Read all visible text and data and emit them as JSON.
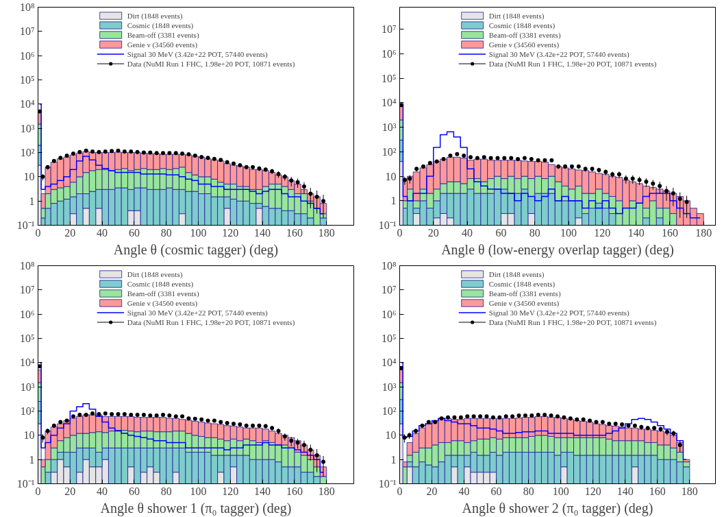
{
  "chart_data": [
    {
      "type": "bar",
      "stacked": true,
      "log": "y",
      "grid": false,
      "legend": "top",
      "xlabel": "Angle θ (cosmic tagger) (deg)",
      "x": [
        1,
        3,
        6,
        10,
        14,
        18,
        22,
        26,
        30,
        34,
        38,
        42,
        46,
        50,
        54,
        58,
        62,
        66,
        70,
        74,
        78,
        82,
        86,
        90,
        94,
        98,
        102,
        106,
        110,
        114,
        118,
        122,
        126,
        130,
        134,
        138,
        142,
        146,
        150,
        154,
        158,
        162,
        166,
        170,
        174,
        178
      ],
      "xlim": [
        0,
        197
      ],
      "xticks": [
        0,
        20,
        40,
        60,
        80,
        100,
        120,
        140,
        160,
        180
      ],
      "ylim": [
        0.1,
        100000000
      ],
      "yticks": [
        {
          "value": 0.1,
          "label": "10⁻¹"
        },
        1,
        10,
        {
          "value": 100,
          "label": "10²"
        },
        {
          "value": 1000,
          "label": "10³"
        },
        {
          "value": 10000,
          "label": "10⁴"
        },
        {
          "value": 100000,
          "label": "10⁵"
        },
        {
          "value": 1000000,
          "label": "10⁶"
        },
        {
          "value": 10000000,
          "label": "10⁷"
        },
        {
          "value": 100000000,
          "label": "10⁸"
        }
      ],
      "series": [
        {
          "name": "Dirt (1848 events)",
          "color": "#e5e5e5",
          "values": [
            30,
            null,
            null,
            null,
            null,
            null,
            0.3,
            null,
            0.5,
            null,
            0.5,
            null,
            null,
            null,
            null,
            0.4,
            0.4,
            null,
            null,
            null,
            null,
            null,
            null,
            0.3,
            null,
            null,
            null,
            null,
            null,
            null,
            0.5,
            null,
            null,
            null,
            null,
            0.5,
            null,
            null,
            null,
            null,
            null,
            null,
            null,
            null,
            null,
            null
          ]
        },
        {
          "name": "Cosmic (1848 events)",
          "color": "#7fcccc",
          "values": [
            170,
            0.2,
            0.5,
            0.8,
            1,
            1.2,
            1.2,
            2,
            1.5,
            2.5,
            2.5,
            3,
            3,
            3.5,
            3.5,
            2.6,
            3.1,
            3.5,
            3,
            3,
            3,
            3.5,
            3,
            2.7,
            2.5,
            2.5,
            2,
            2,
            1.5,
            1.5,
            1,
            1.2,
            1,
            1,
            0.8,
            0.3,
            0.6,
            0.5,
            0.5,
            0.4,
            0.4,
            0.3,
            0.3,
            0.2,
            null,
            0.2
          ]
        },
        {
          "name": "Beam-off (3381 events)",
          "color": "#99e599",
          "values": [
            1300,
            0.3,
            1.5,
            2.2,
            2.5,
            2.8,
            4.5,
            8,
            13,
            15.5,
            17,
            17,
            15,
            16.5,
            18.5,
            15,
            16.5,
            18.5,
            17,
            17,
            19,
            16.5,
            19,
            22,
            12.5,
            9.5,
            8,
            8,
            6.5,
            4.5,
            3.5,
            3.8,
            3,
            3,
            2.2,
            2.2,
            3.4,
            4.5,
            4.5,
            3.6,
            2.6,
            1.7,
            1.7,
            0.8,
            0.5,
            0.1
          ]
        },
        {
          "name": "Genie ν (34560 events)",
          "color": "#ff9999",
          "values": [
            3500,
            1.5,
            23,
            37,
            52,
            61,
            74,
            85,
            95,
            82,
            80,
            80,
            82,
            85,
            78,
            82,
            80,
            73,
            70,
            70,
            63,
            65,
            63,
            60,
            65,
            58,
            55,
            45,
            42,
            39,
            30,
            25,
            24,
            21,
            17,
            17,
            14,
            10,
            7,
            6,
            4,
            3,
            1,
            1,
            1,
            0.5
          ]
        },
        {
          "name": "Signal 30 MeV (3.42e+22 POT, 57440 events)",
          "type": "step",
          "color": "#0000ff",
          "values": [
            10000,
            3,
            4,
            5,
            7,
            10,
            20,
            45,
            70,
            50,
            30,
            22,
            18,
            15,
            15,
            15,
            15,
            13,
            13,
            13,
            13,
            12,
            12,
            10,
            8,
            7,
            5,
            5,
            4,
            4,
            3,
            3,
            3,
            3,
            2.5,
            2,
            2.5,
            3,
            3,
            2,
            1.5,
            1.5,
            1,
            0.8,
            0.5,
            0.3
          ]
        },
        {
          "name": "Data (NuMI Run 1 FHC, 1.98e+20 POT, 10871 events)",
          "type": "scatter",
          "marker": "circle",
          "color": "#000000",
          "values": [
            5000,
            10,
            25,
            45,
            60,
            75,
            90,
            105,
            120,
            110,
            105,
            110,
            115,
            120,
            110,
            110,
            105,
            100,
            100,
            95,
            95,
            95,
            95,
            90,
            85,
            75,
            65,
            60,
            55,
            50,
            40,
            35,
            30,
            25,
            25,
            22,
            20,
            17,
            13,
            10,
            7,
            6,
            4,
            2,
            1.5,
            1
          ],
          "errors": [
            null,
            3,
            5,
            7,
            8,
            9,
            9,
            10,
            11,
            10,
            10,
            10,
            11,
            11,
            10,
            10,
            10,
            10,
            10,
            10,
            10,
            10,
            10,
            9,
            9,
            9,
            8,
            8,
            7,
            7,
            6,
            6,
            5,
            5,
            5,
            5,
            4,
            4,
            4,
            3,
            3,
            2.5,
            2,
            1.5,
            1.2,
            0.8
          ]
        }
      ]
    },
    {
      "type": "bar",
      "stacked": true,
      "log": "y",
      "grid": false,
      "legend": "top",
      "xlabel": "Angle θ (low-energy overlap tagger) (deg)",
      "x": [
        1,
        3,
        6,
        10,
        14,
        18,
        22,
        26,
        30,
        34,
        38,
        42,
        46,
        50,
        54,
        58,
        62,
        66,
        70,
        74,
        78,
        82,
        86,
        90,
        94,
        98,
        102,
        106,
        110,
        114,
        118,
        122,
        126,
        130,
        134,
        138,
        142,
        146,
        150,
        154,
        158,
        162,
        166,
        170,
        174,
        178
      ],
      "xlim": [
        0,
        187
      ],
      "xticks": [
        0,
        20,
        40,
        60,
        80,
        100,
        120,
        140,
        160,
        180
      ],
      "ylim": [
        0.1,
        80000000
      ],
      "yticks": [
        {
          "value": 0.1,
          "label": "10⁻¹"
        },
        1,
        10,
        {
          "value": 100,
          "label": "10²"
        },
        {
          "value": 1000,
          "label": "10³"
        },
        {
          "value": 10000,
          "label": "10⁴"
        },
        {
          "value": 100000,
          "label": "10⁵"
        },
        {
          "value": 1000000,
          "label": "10⁶"
        },
        {
          "value": 10000000,
          "label": "10⁷"
        }
      ],
      "series": [
        {
          "name": "Dirt (1848 events)",
          "color": "#e5e5e5",
          "values": [
            40,
            null,
            null,
            0.3,
            null,
            null,
            0.2,
            0.3,
            0.2,
            null,
            null,
            null,
            null,
            null,
            null,
            null,
            0.3,
            0.3,
            null,
            null,
            0.3,
            null,
            null,
            null,
            null,
            null,
            null,
            0.2,
            null,
            null,
            null,
            null,
            null,
            null,
            null,
            null,
            null,
            null,
            null,
            null,
            null,
            null,
            null,
            null,
            null,
            null
          ]
        },
        {
          "name": "Cosmic (1848 events)",
          "color": "#7fcccc",
          "values": [
            260,
            0.5,
            1,
            0.2,
            1,
            0.5,
            0.8,
            1.7,
            1.8,
            2,
            2,
            3,
            2,
            2,
            2,
            3,
            2.7,
            1.7,
            2,
            3,
            1.2,
            2,
            2,
            2,
            1,
            1,
            1,
            0.8,
            0.3,
            0.5,
            0.8,
            0.5,
            0.3,
            null,
            null,
            null,
            null,
            0.2,
            null,
            0.2,
            null,
            null,
            null,
            null,
            null,
            null
          ]
        },
        {
          "name": "Beam-off (3381 events)",
          "color": "#99e599",
          "values": [
            1700,
            0.5,
            2,
            0.5,
            2,
            1.5,
            2,
            3,
            4,
            4,
            3,
            5,
            6,
            4,
            6,
            7,
            5,
            8,
            6,
            7,
            6.5,
            8,
            6,
            8,
            5,
            3,
            2,
            3,
            1.7,
            1.5,
            2.2,
            1.5,
            1.2,
            1,
            0.5,
            1,
            0.8,
            0.3,
            1,
            0.3,
            0.5,
            0.3,
            null,
            null,
            null,
            null
          ]
        },
        {
          "name": "Genie ν (34560 events)",
          "color": "#ff9999",
          "values": [
            6000,
            7,
            7,
            14,
            19,
            28,
            37,
            45,
            54,
            54,
            50,
            37,
            42,
            44,
            37,
            35,
            37,
            35,
            37,
            32,
            32,
            30,
            30,
            20,
            19,
            18,
            17,
            14,
            15,
            13,
            10,
            10,
            8.5,
            8,
            6.5,
            5,
            4.2,
            3.5,
            2.5,
            2.5,
            2,
            1.7,
            1.5,
            1,
            0.5,
            0.3
          ]
        },
        {
          "name": "Signal 30 MeV (3.42e+22 POT, 57440 events)",
          "type": "step",
          "color": "#0000ff",
          "values": [
            9000,
            1.5,
            1,
            2,
            2,
            10,
            150,
            500,
            650,
            400,
            150,
            20,
            6,
            4,
            3,
            3,
            2,
            2,
            1,
            2,
            1.5,
            1,
            1.5,
            3,
            1,
            1.5,
            1,
            1,
            0.5,
            1,
            0.5,
            1,
            0.5,
            0.3,
            0.5,
            0.5,
            0.8,
            1.5,
            2,
            2,
            2,
            1,
            0.5,
            0.3,
            0.2,
            0.2
          ]
        },
        {
          "name": "Data (NuMI Run 1 FHC, 1.98e+20 POT, 10871 events)",
          "type": "scatter",
          "marker": "circle",
          "color": "#000000",
          "values": [
            8000,
            7,
            8,
            20,
            25,
            35,
            40,
            50,
            70,
            80,
            70,
            60,
            55,
            60,
            55,
            55,
            55,
            55,
            50,
            55,
            50,
            45,
            45,
            45,
            25,
            25,
            25,
            25,
            20,
            20,
            18,
            15,
            12,
            12,
            8,
            8,
            7,
            6,
            5,
            4,
            2.5,
            2,
            1.2,
            0.9,
            null,
            null
          ],
          "errors": [
            null,
            2.5,
            3,
            4.5,
            5,
            6,
            6,
            7,
            8,
            9,
            8,
            8,
            7,
            8,
            7,
            7,
            7,
            7,
            7,
            7,
            7,
            7,
            7,
            7,
            5,
            5,
            5,
            5,
            4.5,
            4.5,
            4,
            4,
            3.5,
            3.5,
            3,
            3,
            2.6,
            2.4,
            2.2,
            2,
            1.5,
            1.4,
            1,
            0.7,
            null,
            null
          ]
        }
      ]
    },
    {
      "type": "bar",
      "stacked": true,
      "log": "y",
      "grid": false,
      "legend": "top",
      "xlabel": "Angle θ shower 1 (π₀ tagger) (deg)",
      "x": [
        1,
        3,
        6,
        10,
        14,
        18,
        22,
        26,
        30,
        34,
        38,
        42,
        46,
        50,
        54,
        58,
        62,
        66,
        70,
        74,
        78,
        82,
        86,
        90,
        94,
        98,
        102,
        106,
        110,
        114,
        118,
        122,
        126,
        130,
        134,
        138,
        142,
        146,
        150,
        154,
        158,
        162,
        166,
        170,
        174,
        178
      ],
      "xlim": [
        0,
        197
      ],
      "xticks": [
        0,
        20,
        40,
        60,
        80,
        100,
        120,
        140,
        160,
        180
      ],
      "ylim": [
        0.1,
        100000000
      ],
      "yticks": [
        {
          "value": 0.1,
          "label": "10⁻¹"
        },
        1,
        10,
        {
          "value": 100,
          "label": "10²"
        },
        {
          "value": 1000,
          "label": "10³"
        },
        {
          "value": 10000,
          "label": "10⁴"
        },
        {
          "value": 100000,
          "label": "10⁵"
        },
        {
          "value": 1000000,
          "label": "10⁶"
        },
        {
          "value": 10000000,
          "label": "10⁷"
        },
        {
          "value": 100000000,
          "label": "10⁸"
        }
      ],
      "series": [
        {
          "name": "Dirt (1848 events)",
          "color": "#e5e5e5",
          "values": [
            30,
            null,
            null,
            0.3,
            1,
            0.5,
            null,
            0.3,
            1,
            0.5,
            0.5,
            1,
            null,
            null,
            null,
            0.5,
            null,
            0.3,
            0.5,
            0.3,
            null,
            null,
            0.3,
            null,
            null,
            null,
            null,
            null,
            null,
            0.3,
            null,
            0.5,
            null,
            null,
            null,
            null,
            null,
            null,
            null,
            null,
            null,
            null,
            null,
            null,
            null,
            null
          ]
        },
        {
          "name": "Cosmic (1848 events)",
          "color": "#7fcccc",
          "values": [
            220,
            null,
            0.3,
            0.7,
            1,
            1.5,
            2,
            2.7,
            2,
            2.5,
            1.5,
            2,
            3,
            3,
            3,
            2.5,
            3,
            2.7,
            2.5,
            2.7,
            3,
            3,
            2.7,
            3,
            2,
            2,
            2,
            2,
            1.5,
            1.2,
            1.5,
            1,
            1.5,
            1.5,
            1,
            1,
            1,
            1,
            0.8,
            0.5,
            0.5,
            0.5,
            0.3,
            0.3,
            0.2,
            null
          ]
        },
        {
          "name": "Beam-off (3381 events)",
          "color": "#99e599",
          "values": [
            1250,
            0.5,
            0.7,
            2,
            4,
            6,
            8,
            9,
            9,
            10,
            12,
            10,
            12,
            13,
            13,
            12,
            11,
            12,
            12,
            11,
            11,
            11,
            12,
            12,
            10,
            8,
            7,
            6,
            6.5,
            5.5,
            4.5,
            5.5,
            4.5,
            5.5,
            5,
            4,
            5,
            4,
            3.2,
            3.5,
            2.5,
            1.5,
            1.2,
            0.7,
            0.3,
            0.2
          ]
        },
        {
          "name": "Genie ν (34560 events)",
          "color": "#ff9999",
          "values": [
            3500,
            0.5,
            14,
            19,
            24,
            32,
            40,
            48,
            58,
            57,
            56,
            47,
            45,
            44,
            44,
            45,
            41,
            40,
            40,
            41,
            41,
            36,
            35,
            30,
            30,
            28,
            26,
            24,
            22,
            21,
            19,
            17,
            16,
            13,
            14,
            15,
            12,
            10,
            8,
            6,
            5,
            4,
            2.5,
            1.5,
            1,
            0.3
          ]
        },
        {
          "name": "Signal 30 MeV (3.42e+22 POT, 57440 events)",
          "type": "step",
          "color": "#0000ff",
          "values": [
            10000,
            3,
            5,
            10,
            20,
            30,
            100,
            150,
            200,
            120,
            60,
            35,
            20,
            15,
            12,
            10,
            9,
            8,
            7,
            6,
            6,
            5,
            5,
            5,
            3,
            3,
            3,
            3,
            3,
            3,
            2.5,
            3,
            3,
            4,
            4,
            4,
            5,
            4,
            4,
            3,
            3,
            2.5,
            2,
            1.5,
            1,
            0.3
          ]
        },
        {
          "name": "Data (NuMI Run 1 FHC, 1.98e+20 POT, 10871 events)",
          "type": "scatter",
          "marker": "circle",
          "color": "#000000",
          "values": [
            7000,
            8,
            15,
            25,
            35,
            40,
            60,
            70,
            70,
            80,
            75,
            80,
            75,
            75,
            75,
            70,
            70,
            70,
            65,
            65,
            70,
            65,
            60,
            60,
            50,
            48,
            45,
            40,
            40,
            35,
            32,
            30,
            28,
            25,
            25,
            25,
            24,
            20,
            15,
            9,
            6,
            5,
            4,
            2.5,
            1.5,
            0.8
          ],
          "errors": [
            null,
            3,
            4,
            5,
            6,
            6,
            8,
            8,
            8,
            9,
            9,
            9,
            9,
            9,
            9,
            8,
            8,
            8,
            8,
            8,
            8,
            8,
            8,
            8,
            7,
            7,
            7,
            6,
            6,
            6,
            6,
            5,
            5,
            5,
            5,
            5,
            5,
            4.5,
            4,
            3,
            2.5,
            2.2,
            2,
            1.6,
            1.2,
            0.6
          ]
        }
      ]
    },
    {
      "type": "bar",
      "stacked": true,
      "log": "y",
      "grid": false,
      "legend": "top",
      "xlabel": "Angle θ shower 2 (π₀ tagger) (deg)",
      "x": [
        1,
        3,
        6,
        10,
        14,
        18,
        22,
        26,
        30,
        34,
        38,
        42,
        46,
        50,
        54,
        58,
        62,
        66,
        70,
        74,
        78,
        82,
        86,
        90,
        94,
        98,
        102,
        106,
        110,
        114,
        118,
        122,
        126,
        130,
        134,
        138,
        142,
        146,
        150,
        154,
        158,
        162,
        166,
        170,
        174,
        178
      ],
      "xlim": [
        0,
        196
      ],
      "xticks": [
        0,
        20,
        40,
        60,
        80,
        100,
        120,
        140,
        160,
        180
      ],
      "ylim": [
        0.1,
        100000000
      ],
      "yticks": [
        {
          "value": 0.1,
          "label": "10⁻¹"
        },
        1,
        10,
        {
          "value": 100,
          "label": "10²"
        },
        {
          "value": 1000,
          "label": "10³"
        },
        {
          "value": 10000,
          "label": "10⁴"
        },
        {
          "value": 100000,
          "label": "10⁵"
        },
        {
          "value": 1000000,
          "label": "10⁶"
        },
        {
          "value": 10000000,
          "label": "10⁷"
        },
        {
          "value": 100000000,
          "label": "10⁸"
        }
      ],
      "series": [
        {
          "name": "Dirt (1848 events)",
          "color": "#e5e5e5",
          "values": [
            30,
            null,
            0.5,
            null,
            null,
            null,
            null,
            null,
            null,
            0.5,
            null,
            0.5,
            0.3,
            0.3,
            0.3,
            0.3,
            null,
            null,
            null,
            null,
            null,
            null,
            null,
            null,
            null,
            null,
            0.5,
            null,
            null,
            null,
            null,
            null,
            null,
            null,
            null,
            null,
            null,
            0.5,
            null,
            null,
            null,
            null,
            null,
            null,
            null,
            null
          ]
        },
        {
          "name": "Cosmic (1848 events)",
          "color": "#7fcccc",
          "values": [
            270,
            null,
            0.3,
            0.5,
            0.8,
            0.6,
            0.5,
            0.8,
            1.5,
            1,
            1.5,
            1,
            1.7,
            1.2,
            1.2,
            1.7,
            1.5,
            2,
            2,
            2,
            2,
            2,
            2,
            2,
            2,
            1.5,
            1.5,
            2,
            1.5,
            1.5,
            1.5,
            1.5,
            1.5,
            1.5,
            1.5,
            1.5,
            1.5,
            1,
            1.5,
            1.5,
            1.5,
            1,
            1,
            1,
            0.8,
            0.5
          ]
        },
        {
          "name": "Beam-off (3381 events)",
          "color": "#99e599",
          "values": [
            1200,
            0.5,
            0.7,
            1.5,
            2.2,
            2.4,
            3.5,
            4.2,
            3.5,
            4.5,
            4.5,
            3.5,
            4,
            5.5,
            5.5,
            6,
            5.5,
            6,
            6,
            6,
            6,
            7,
            8,
            8,
            7,
            6.5,
            6,
            6,
            6.5,
            6.5,
            6.5,
            6.5,
            6.5,
            5.5,
            4.5,
            4.5,
            4.5,
            4.5,
            4.5,
            3.5,
            3.5,
            3,
            3,
            2,
            1.2,
            0.3
          ]
        },
        {
          "name": "Genie ν (34560 events)",
          "color": "#ff9999",
          "values": [
            3500,
            0.3,
            3.5,
            10,
            17,
            27,
            36,
            45,
            45,
            39,
            39,
            45,
            44,
            43,
            43,
            42,
            41,
            42,
            42,
            44,
            47,
            46,
            50,
            50,
            46,
            47,
            42,
            37,
            32,
            30,
            27,
            22,
            20,
            18,
            18,
            16,
            14,
            14,
            12,
            13,
            11,
            11,
            9,
            7,
            3,
            0.2
          ]
        },
        {
          "name": "Signal 30 MeV (3.42e+22 POT, 57440 events)",
          "type": "step",
          "color": "#0000ff",
          "values": [
            10000,
            8,
            9,
            15,
            25,
            30,
            40,
            50,
            40,
            35,
            30,
            30,
            25,
            20,
            20,
            18,
            15,
            12,
            12,
            13,
            14,
            14,
            15,
            15,
            12,
            12,
            12,
            12,
            10,
            10,
            10,
            10,
            10,
            12,
            15,
            20,
            30,
            45,
            50,
            45,
            35,
            25,
            18,
            12,
            6,
            1
          ]
        },
        {
          "name": "Data (NuMI Run 1 FHC, 1.98e+20 POT, 10871 events)",
          "type": "scatter",
          "marker": "circle",
          "color": "#000000",
          "values": [
            6000,
            8,
            10,
            15,
            25,
            35,
            35,
            50,
            55,
            55,
            55,
            60,
            60,
            60,
            60,
            55,
            55,
            60,
            60,
            65,
            65,
            65,
            70,
            70,
            65,
            60,
            55,
            50,
            45,
            45,
            40,
            35,
            35,
            30,
            30,
            28,
            25,
            25,
            22,
            20,
            20,
            18,
            14,
            12,
            4,
            null
          ],
          "errors": [
            null,
            3,
            3,
            4,
            5,
            6,
            6,
            7,
            7,
            7,
            7,
            8,
            8,
            8,
            8,
            7,
            7,
            8,
            8,
            8,
            8,
            8,
            8,
            8,
            8,
            8,
            7,
            7,
            7,
            7,
            6,
            6,
            6,
            5,
            5,
            5,
            5,
            5,
            5,
            4.5,
            4.5,
            4,
            4,
            3.5,
            2,
            null
          ]
        }
      ]
    }
  ]
}
